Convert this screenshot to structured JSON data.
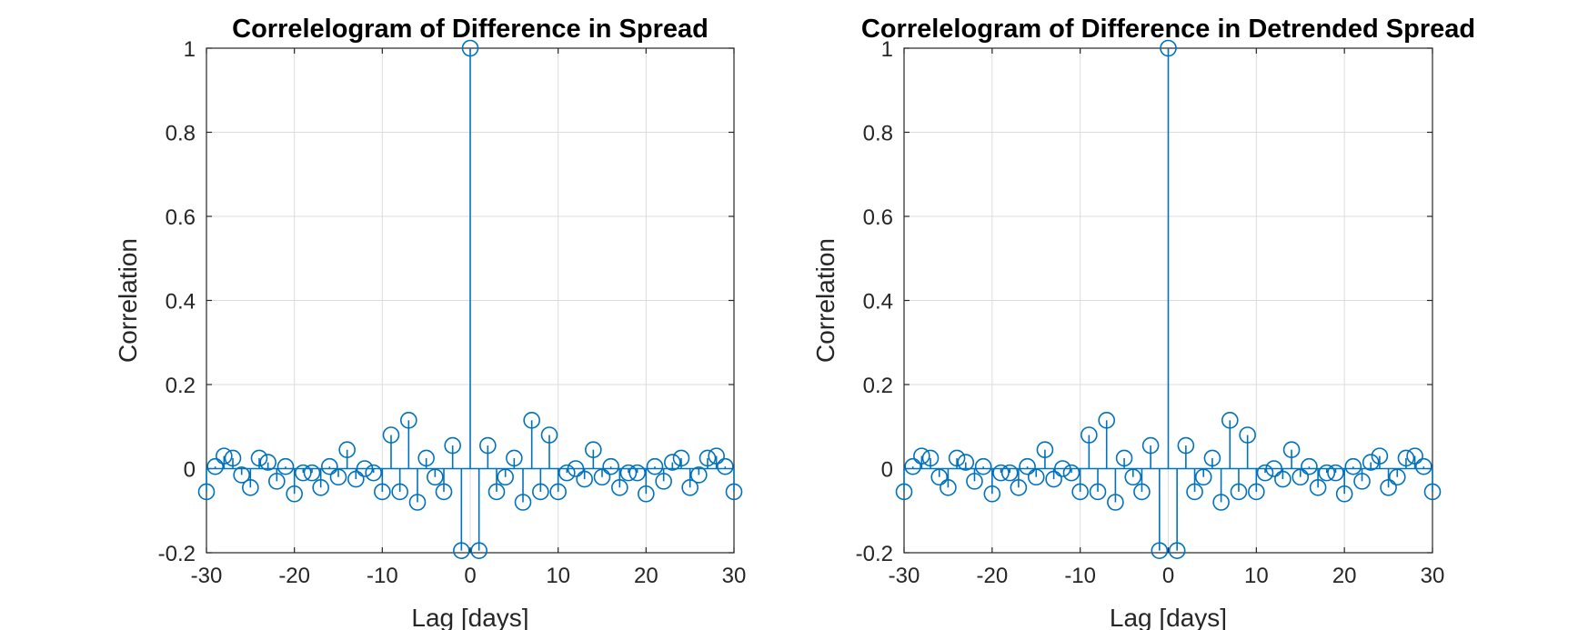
{
  "chart_data": [
    {
      "type": "stem",
      "title": "Correlelogram of Difference in Spread",
      "xlabel": "Lag [days]",
      "ylabel": "Correlation",
      "xlim": [
        -30,
        30
      ],
      "ylim": [
        -0.2,
        1
      ],
      "xticks": [
        -30,
        -20,
        -10,
        0,
        10,
        20,
        30
      ],
      "yticks": [
        -0.2,
        0,
        0.2,
        0.4,
        0.6,
        0.8,
        1
      ],
      "ytick_labels": [
        "-0.2",
        "0",
        "0.2",
        "0.4",
        "0.6",
        "0.8",
        "1"
      ],
      "grid": true,
      "color": "#0072BD",
      "series": [
        {
          "x": [
            -30,
            -29,
            -28,
            -27,
            -26,
            -25,
            -24,
            -23,
            -22,
            -21,
            -20,
            -19,
            -18,
            -17,
            -16,
            -15,
            -14,
            -13,
            -12,
            -11,
            -10,
            -9,
            -8,
            -7,
            -6,
            -5,
            -4,
            -3,
            -2,
            -1,
            0,
            1,
            2,
            3,
            4,
            5,
            6,
            7,
            8,
            9,
            10,
            11,
            12,
            13,
            14,
            15,
            16,
            17,
            18,
            19,
            20,
            21,
            22,
            23,
            24,
            25,
            26,
            27,
            28,
            29,
            30
          ],
          "values": [
            -0.055,
            0.005,
            0.03,
            0.025,
            -0.015,
            -0.045,
            0.025,
            0.015,
            -0.03,
            0.005,
            -0.06,
            -0.01,
            -0.01,
            -0.045,
            0.005,
            -0.02,
            0.045,
            -0.025,
            0.0,
            -0.01,
            -0.055,
            0.08,
            -0.055,
            0.115,
            -0.08,
            0.025,
            -0.02,
            -0.055,
            0.055,
            -0.195,
            1.0,
            -0.195,
            0.055,
            -0.055,
            -0.02,
            0.025,
            -0.08,
            0.115,
            -0.055,
            0.08,
            -0.055,
            -0.01,
            0.0,
            -0.025,
            0.045,
            -0.02,
            0.005,
            -0.045,
            -0.01,
            -0.01,
            -0.06,
            0.005,
            -0.03,
            0.015,
            0.025,
            -0.045,
            -0.015,
            0.025,
            0.03,
            0.005,
            -0.055
          ]
        }
      ]
    },
    {
      "type": "stem",
      "title": "Correlelogram of Difference in Detrended Spread",
      "xlabel": "Lag [days]",
      "ylabel": "Correlation",
      "xlim": [
        -30,
        30
      ],
      "ylim": [
        -0.2,
        1
      ],
      "xticks": [
        -30,
        -20,
        -10,
        0,
        10,
        20,
        30
      ],
      "yticks": [
        -0.2,
        0,
        0.2,
        0.4,
        0.6,
        0.8,
        1
      ],
      "ytick_labels": [
        "-0.2",
        "0",
        "0.2",
        "0.4",
        "0.6",
        "0.8",
        "1"
      ],
      "grid": true,
      "color": "#0072BD",
      "series": [
        {
          "x": [
            -30,
            -29,
            -28,
            -27,
            -26,
            -25,
            -24,
            -23,
            -22,
            -21,
            -20,
            -19,
            -18,
            -17,
            -16,
            -15,
            -14,
            -13,
            -12,
            -11,
            -10,
            -9,
            -8,
            -7,
            -6,
            -5,
            -4,
            -3,
            -2,
            -1,
            0,
            1,
            2,
            3,
            4,
            5,
            6,
            7,
            8,
            9,
            10,
            11,
            12,
            13,
            14,
            15,
            16,
            17,
            18,
            19,
            20,
            21,
            22,
            23,
            24,
            25,
            26,
            27,
            28,
            29,
            30
          ],
          "values": [
            -0.055,
            0.005,
            0.03,
            0.025,
            -0.02,
            -0.045,
            0.025,
            0.015,
            -0.03,
            0.005,
            -0.06,
            -0.01,
            -0.01,
            -0.045,
            0.005,
            -0.02,
            0.045,
            -0.025,
            0.0,
            -0.01,
            -0.055,
            0.08,
            -0.055,
            0.115,
            -0.08,
            0.025,
            -0.02,
            -0.055,
            0.055,
            -0.195,
            1.0,
            -0.195,
            0.055,
            -0.055,
            -0.02,
            0.025,
            -0.08,
            0.115,
            -0.055,
            0.08,
            -0.055,
            -0.01,
            0.0,
            -0.025,
            0.045,
            -0.02,
            0.005,
            -0.045,
            -0.01,
            -0.01,
            -0.06,
            0.005,
            -0.03,
            0.015,
            0.03,
            -0.045,
            -0.02,
            0.025,
            0.03,
            0.005,
            -0.055
          ]
        }
      ]
    }
  ]
}
